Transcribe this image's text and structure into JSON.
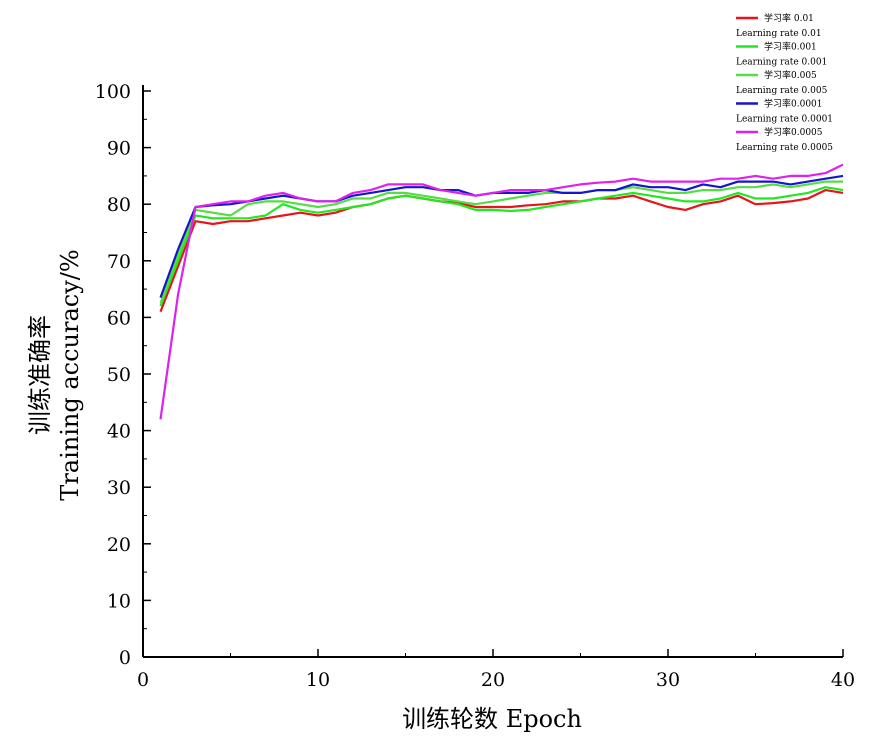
{
  "chart_data": {
    "type": "line",
    "xlabel": "训练轮数  Epoch",
    "ylabel_line1": "训练准确率",
    "ylabel_line2": "Training accuracy/%",
    "xlim": [
      0,
      40
    ],
    "ylim": [
      0,
      100
    ],
    "xticks": [
      0,
      10,
      20,
      30,
      40
    ],
    "yticks": [
      0,
      10,
      20,
      30,
      40,
      50,
      60,
      70,
      80,
      90,
      100
    ],
    "grid": false,
    "legend_position": "top-right",
    "series": [
      {
        "name": "学习率 0.01",
        "name_en": "Learning rate 0.01",
        "color": "#e8141c",
        "x": [
          1,
          2,
          3,
          4,
          5,
          6,
          7,
          8,
          9,
          10,
          11,
          12,
          13,
          14,
          15,
          16,
          17,
          18,
          19,
          20,
          21,
          22,
          23,
          24,
          25,
          26,
          27,
          28,
          29,
          30,
          31,
          32,
          33,
          34,
          35,
          36,
          37,
          38,
          39,
          40
        ],
        "values": [
          61,
          69,
          77,
          76.5,
          77,
          77,
          77.5,
          78,
          78.5,
          78,
          78.5,
          79.5,
          80,
          81,
          81.5,
          81,
          80.5,
          80.2,
          79.5,
          79.5,
          79.5,
          79.8,
          80,
          80.5,
          80.5,
          81,
          81,
          81.5,
          80.5,
          79.5,
          79,
          80,
          80.5,
          81.5,
          80,
          80.2,
          80.5,
          81,
          82.5,
          82
        ]
      },
      {
        "name": "学习率0.001",
        "name_en": "Learning rate 0.001",
        "color": "#22e822",
        "x": [
          1,
          2,
          3,
          4,
          5,
          6,
          7,
          8,
          9,
          10,
          11,
          12,
          13,
          14,
          15,
          16,
          17,
          18,
          19,
          20,
          21,
          22,
          23,
          24,
          25,
          26,
          27,
          28,
          29,
          30,
          31,
          32,
          33,
          34,
          35,
          36,
          37,
          38,
          39,
          40
        ],
        "values": [
          62,
          70,
          78,
          77.5,
          77.5,
          77.5,
          78,
          80,
          79,
          78.5,
          79,
          79.5,
          80,
          81,
          81.5,
          81,
          80.5,
          80,
          79,
          79,
          78.8,
          79,
          79.5,
          80,
          80.5,
          81,
          81.5,
          82,
          81.5,
          81,
          80.5,
          80.5,
          81,
          82,
          81,
          81,
          81.5,
          82,
          83,
          82.5
        ]
      },
      {
        "name": "学习率0.005",
        "name_en": "Learning rate 0.005",
        "color": "#55dd44",
        "x": [
          1,
          2,
          3,
          4,
          5,
          6,
          7,
          8,
          9,
          10,
          11,
          12,
          13,
          14,
          15,
          16,
          17,
          18,
          19,
          20,
          21,
          22,
          23,
          24,
          25,
          26,
          27,
          28,
          29,
          30,
          31,
          32,
          33,
          34,
          35,
          36,
          37,
          38,
          39,
          40
        ],
        "values": [
          62.5,
          71,
          79,
          78.5,
          78,
          80,
          80.5,
          80.5,
          80,
          79.5,
          80,
          81,
          81,
          82,
          82,
          81.5,
          81,
          80.5,
          80,
          80.5,
          81,
          81.5,
          82,
          82,
          82,
          82.5,
          82.5,
          83,
          82.5,
          82,
          82,
          82.5,
          82.5,
          83,
          83,
          83.5,
          83,
          83.5,
          84,
          84
        ]
      },
      {
        "name": "学习率0.0001",
        "name_en": "Learning rate 0.0001",
        "color": "#1515cc",
        "x": [
          1,
          2,
          3,
          4,
          5,
          6,
          7,
          8,
          9,
          10,
          11,
          12,
          13,
          14,
          15,
          16,
          17,
          18,
          19,
          20,
          21,
          22,
          23,
          24,
          25,
          26,
          27,
          28,
          29,
          30,
          31,
          32,
          33,
          34,
          35,
          36,
          37,
          38,
          39,
          40
        ],
        "values": [
          63.5,
          72,
          79.5,
          79.8,
          80,
          80.5,
          81,
          81.5,
          81,
          80.5,
          80.5,
          81.5,
          82,
          82.5,
          83,
          83,
          82.5,
          82.5,
          81.5,
          82,
          82,
          82,
          82.5,
          82,
          82,
          82.5,
          82.5,
          83.5,
          83,
          83,
          82.5,
          83.5,
          83,
          84,
          84,
          84,
          83.5,
          84,
          84.5,
          85
        ]
      },
      {
        "name": "学习率0.0005",
        "name_en": "Learning rate 0.0005",
        "color": "#dd22ee",
        "x": [
          1,
          2,
          3,
          4,
          5,
          6,
          7,
          8,
          9,
          10,
          11,
          12,
          13,
          14,
          15,
          16,
          17,
          18,
          19,
          20,
          21,
          22,
          23,
          24,
          25,
          26,
          27,
          28,
          29,
          30,
          31,
          32,
          33,
          34,
          35,
          36,
          37,
          38,
          39,
          40
        ],
        "values": [
          42,
          64,
          79.5,
          80,
          80.5,
          80.5,
          81.5,
          82,
          81,
          80.5,
          80.5,
          82,
          82.5,
          83.5,
          83.5,
          83.5,
          82.5,
          82,
          81.5,
          82,
          82.5,
          82.5,
          82.5,
          83,
          83.5,
          83.8,
          84,
          84.5,
          84,
          84,
          84,
          84,
          84.5,
          84.5,
          85,
          84.5,
          85,
          85,
          85.5,
          87
        ]
      }
    ]
  }
}
